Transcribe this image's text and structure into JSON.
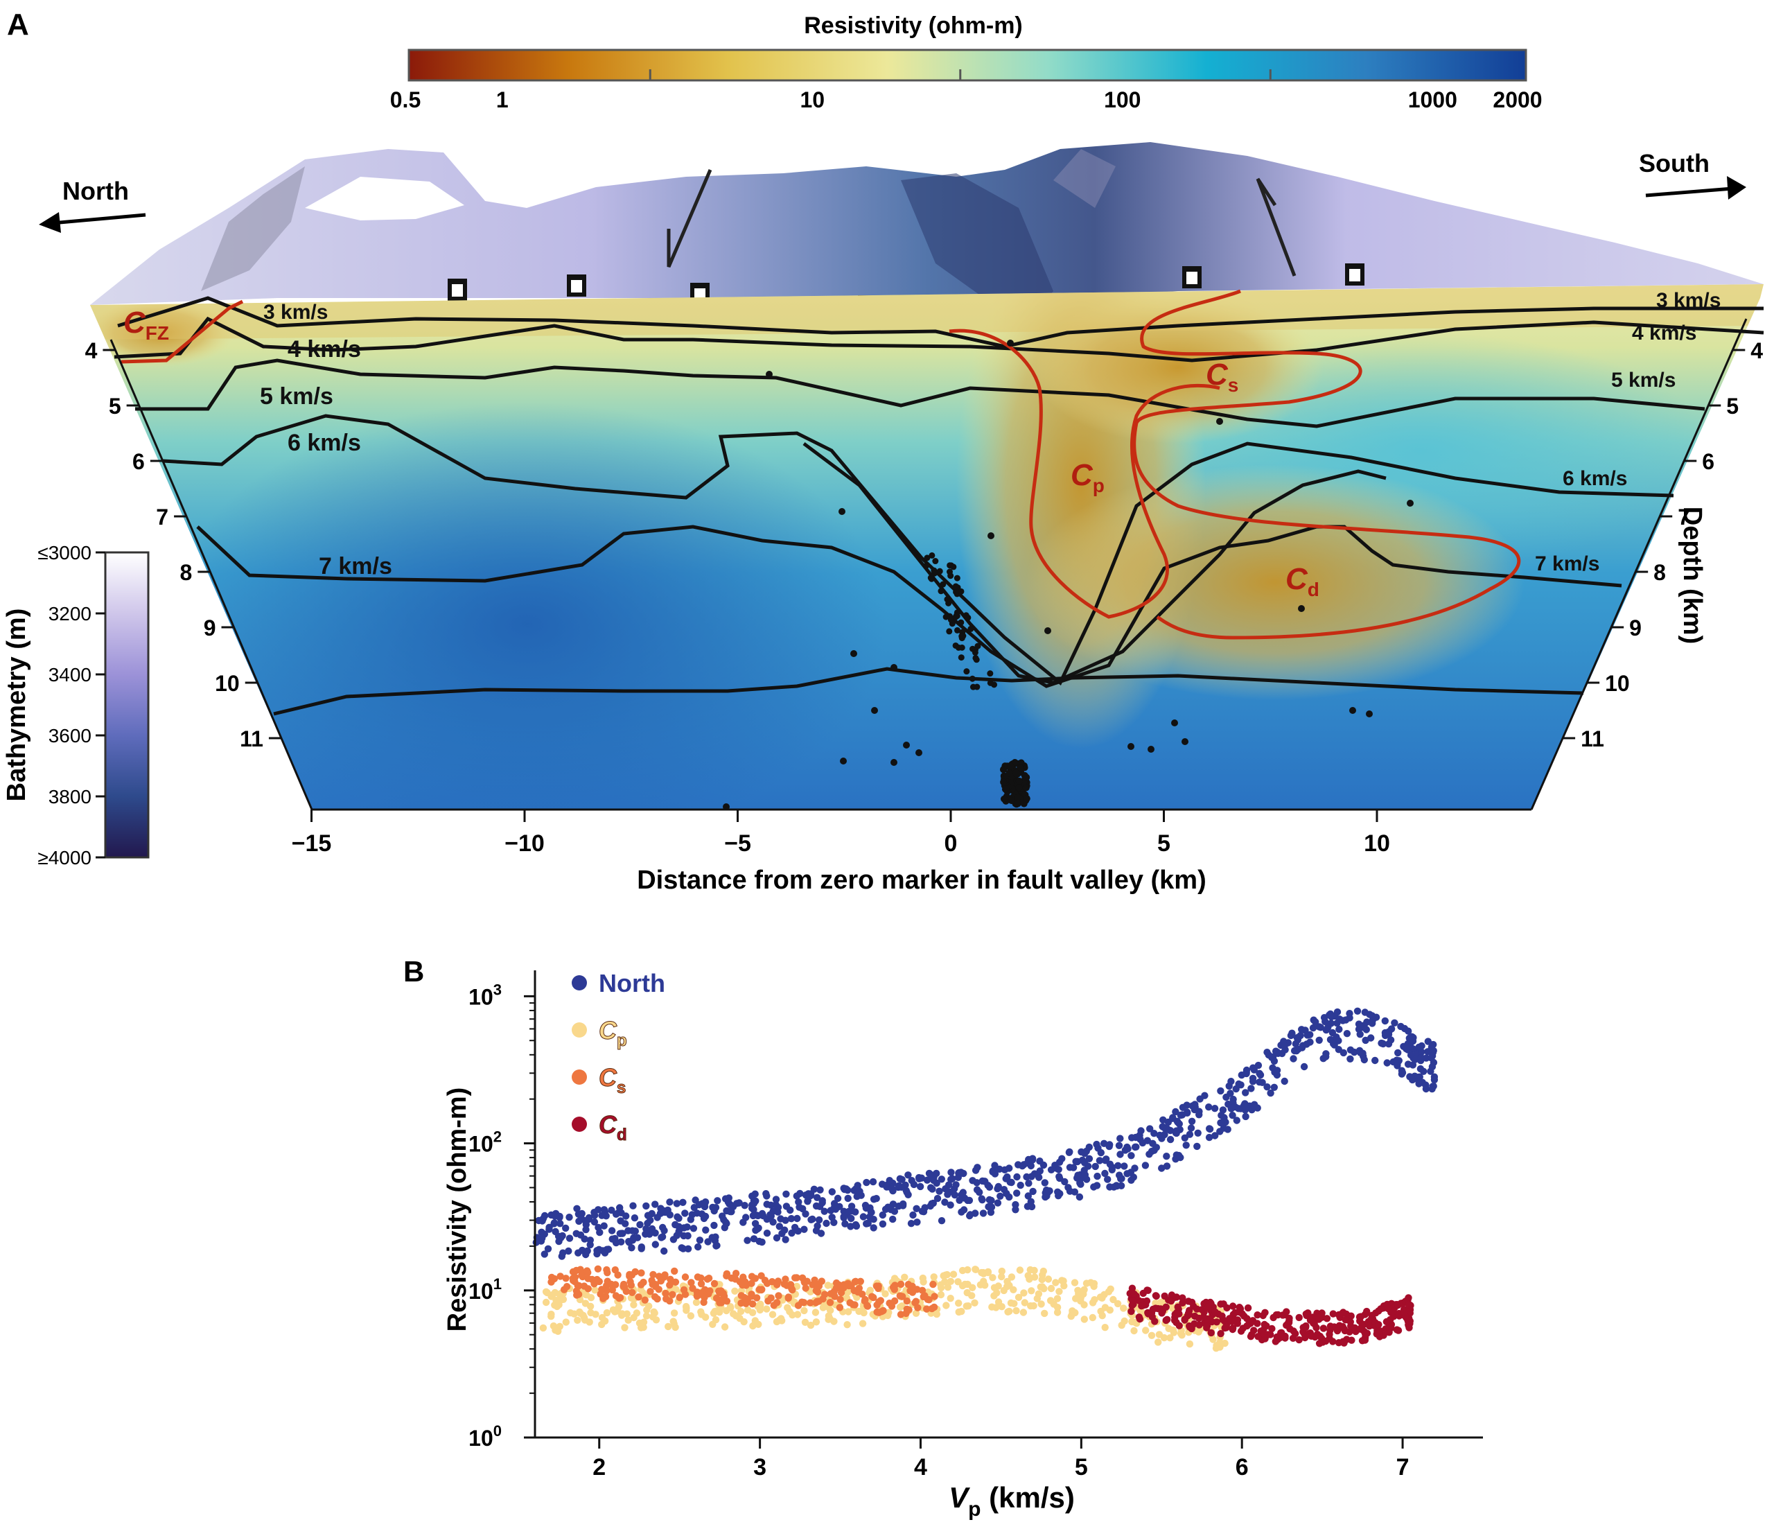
{
  "panel_a": {
    "label": "A",
    "colorbar": {
      "title": "Resistivity (ohm-m)",
      "ticks": [
        "0.5",
        "1",
        "10",
        "100",
        "1000",
        "2000"
      ],
      "tick_values": [
        0.5,
        1,
        10,
        100,
        1000,
        2000
      ],
      "colors": [
        "#8b1a0a",
        "#c8780e",
        "#e2c24c",
        "#ece89a",
        "#93dcc8",
        "#14b0d2",
        "#2d7fc0",
        "#123e96"
      ]
    },
    "north_label": "North",
    "south_label": "South",
    "bathymetry": {
      "title": "Bathymetry (m)",
      "ticks": [
        "≤3000",
        "3200",
        "3400",
        "3600",
        "3800",
        "≥4000"
      ],
      "colors": [
        "#ffffff",
        "#cfc6ea",
        "#9c92d8",
        "#5f6cbc",
        "#2e4a8c",
        "#22184e"
      ]
    },
    "depth_axis": {
      "title": "Depth (km)",
      "ticks": [
        "4",
        "5",
        "6",
        "7",
        "8",
        "9",
        "10",
        "11"
      ],
      "tick_values": [
        4,
        5,
        6,
        7,
        8,
        9,
        10,
        11
      ]
    },
    "distance_axis": {
      "title": "Distance from zero marker in fault valley (km)",
      "ticks": [
        "−15",
        "−10",
        "−5",
        "0",
        "5",
        "10"
      ],
      "tick_values": [
        -15,
        -10,
        -5,
        0,
        5,
        10
      ]
    },
    "contour_labels": [
      "3 km/s",
      "4 km/s",
      "5 km/s",
      "6 km/s",
      "7 km/s",
      "3 km/s",
      "4 km/s",
      "5 km/s",
      "6 km/s",
      "7 km/s"
    ],
    "conductors": [
      {
        "main": "C",
        "sub": "FZ"
      },
      {
        "main": "C",
        "sub": "s"
      },
      {
        "main": "C",
        "sub": "p"
      },
      {
        "main": "C",
        "sub": "d"
      }
    ],
    "colors": {
      "contour": "#111111",
      "conductor_outline": "#c62c12",
      "conductor_text": "#b01e10"
    }
  },
  "panel_b": {
    "label": "B",
    "legend": [
      {
        "main": "North",
        "sub": "",
        "color": "#2d3a96"
      },
      {
        "main": "C",
        "sub": "p",
        "color": "#f9d88c"
      },
      {
        "main": "C",
        "sub": "s",
        "color": "#ee7740"
      },
      {
        "main": "C",
        "sub": "d",
        "color": "#a50d2a"
      }
    ]
  },
  "chart_data": {
    "type": "scatter",
    "title": "",
    "xlabel_main": "V",
    "xlabel_sub": "p",
    "xlabel_unit": " (km/s)",
    "ylabel": "Resistivity (ohm-m)",
    "xlim": [
      1.6,
      7.5
    ],
    "ylim": [
      1,
      1500
    ],
    "yscale": "log",
    "x_ticks": [
      2,
      3,
      4,
      5,
      6,
      7
    ],
    "y_ticks": [
      {
        "value": 1,
        "base": "10",
        "exp": "0"
      },
      {
        "value": 10,
        "base": "10",
        "exp": "1"
      },
      {
        "value": 100,
        "base": "10",
        "exp": "2"
      },
      {
        "value": 1000,
        "base": "10",
        "exp": "3"
      }
    ],
    "grid": false,
    "legend_position": "top-left",
    "series": [
      {
        "name": "North",
        "color": "#2d3a96",
        "x": [
          1.6,
          1.8,
          2.0,
          2.2,
          2.4,
          2.6,
          2.8,
          3.0,
          3.2,
          3.4,
          3.6,
          3.8,
          4.0,
          4.2,
          4.4,
          4.6,
          4.8,
          5.0,
          5.2,
          5.4,
          5.6,
          5.8,
          6.0,
          6.2,
          6.4,
          6.6,
          6.8,
          7.0,
          7.1,
          7.2
        ],
        "y": [
          28,
          30,
          31,
          32,
          33,
          35,
          37,
          38,
          40,
          42,
          45,
          49,
          52,
          55,
          59,
          64,
          70,
          78,
          88,
          105,
          140,
          190,
          260,
          380,
          560,
          700,
          650,
          520,
          440,
          410
        ],
        "spread": [
          0.55,
          1.2
        ],
        "seed": 11,
        "per_point": 30
      },
      {
        "name": "Cp",
        "color": "#f9d88c",
        "x": [
          1.65,
          1.8,
          2.0,
          2.2,
          2.4,
          2.6,
          2.8,
          3.0,
          3.2,
          3.4,
          3.6,
          3.8,
          4.0,
          4.2,
          4.4,
          4.6,
          4.8,
          5.0,
          5.2,
          5.4,
          5.6,
          5.8,
          5.9
        ],
        "y": [
          7.2,
          7.4,
          7.6,
          7.8,
          7.9,
          8.0,
          8.0,
          8.0,
          8.0,
          8.1,
          8.3,
          8.7,
          9.2,
          9.8,
          10.2,
          10.1,
          9.6,
          8.8,
          7.6,
          6.6,
          5.9,
          5.6,
          5.6
        ],
        "spread": [
          0.7,
          1.4
        ],
        "seed": 23,
        "per_point": 24
      },
      {
        "name": "Cs",
        "color": "#ee7740",
        "x": [
          1.7,
          1.9,
          2.1,
          2.3,
          2.5,
          2.7,
          2.9,
          3.1,
          3.3,
          3.5,
          3.7,
          3.9,
          4.1
        ],
        "y": [
          11,
          11,
          11,
          10.8,
          10.6,
          10.4,
          10.2,
          10,
          9.6,
          9.2,
          9,
          8.7,
          8.8
        ],
        "spread": [
          0.78,
          1.28
        ],
        "seed": 37,
        "per_point": 22
      },
      {
        "name": "Cd",
        "color": "#a50d2a",
        "x": [
          5.3,
          5.5,
          5.7,
          5.9,
          6.1,
          6.3,
          6.5,
          6.7,
          6.85,
          7.0,
          7.05
        ],
        "y": [
          8.2,
          7.4,
          6.7,
          6.2,
          5.7,
          5.5,
          5.4,
          5.5,
          6.0,
          6.6,
          7.0
        ],
        "spread": [
          0.8,
          1.3
        ],
        "seed": 53,
        "per_point": 34
      }
    ]
  }
}
